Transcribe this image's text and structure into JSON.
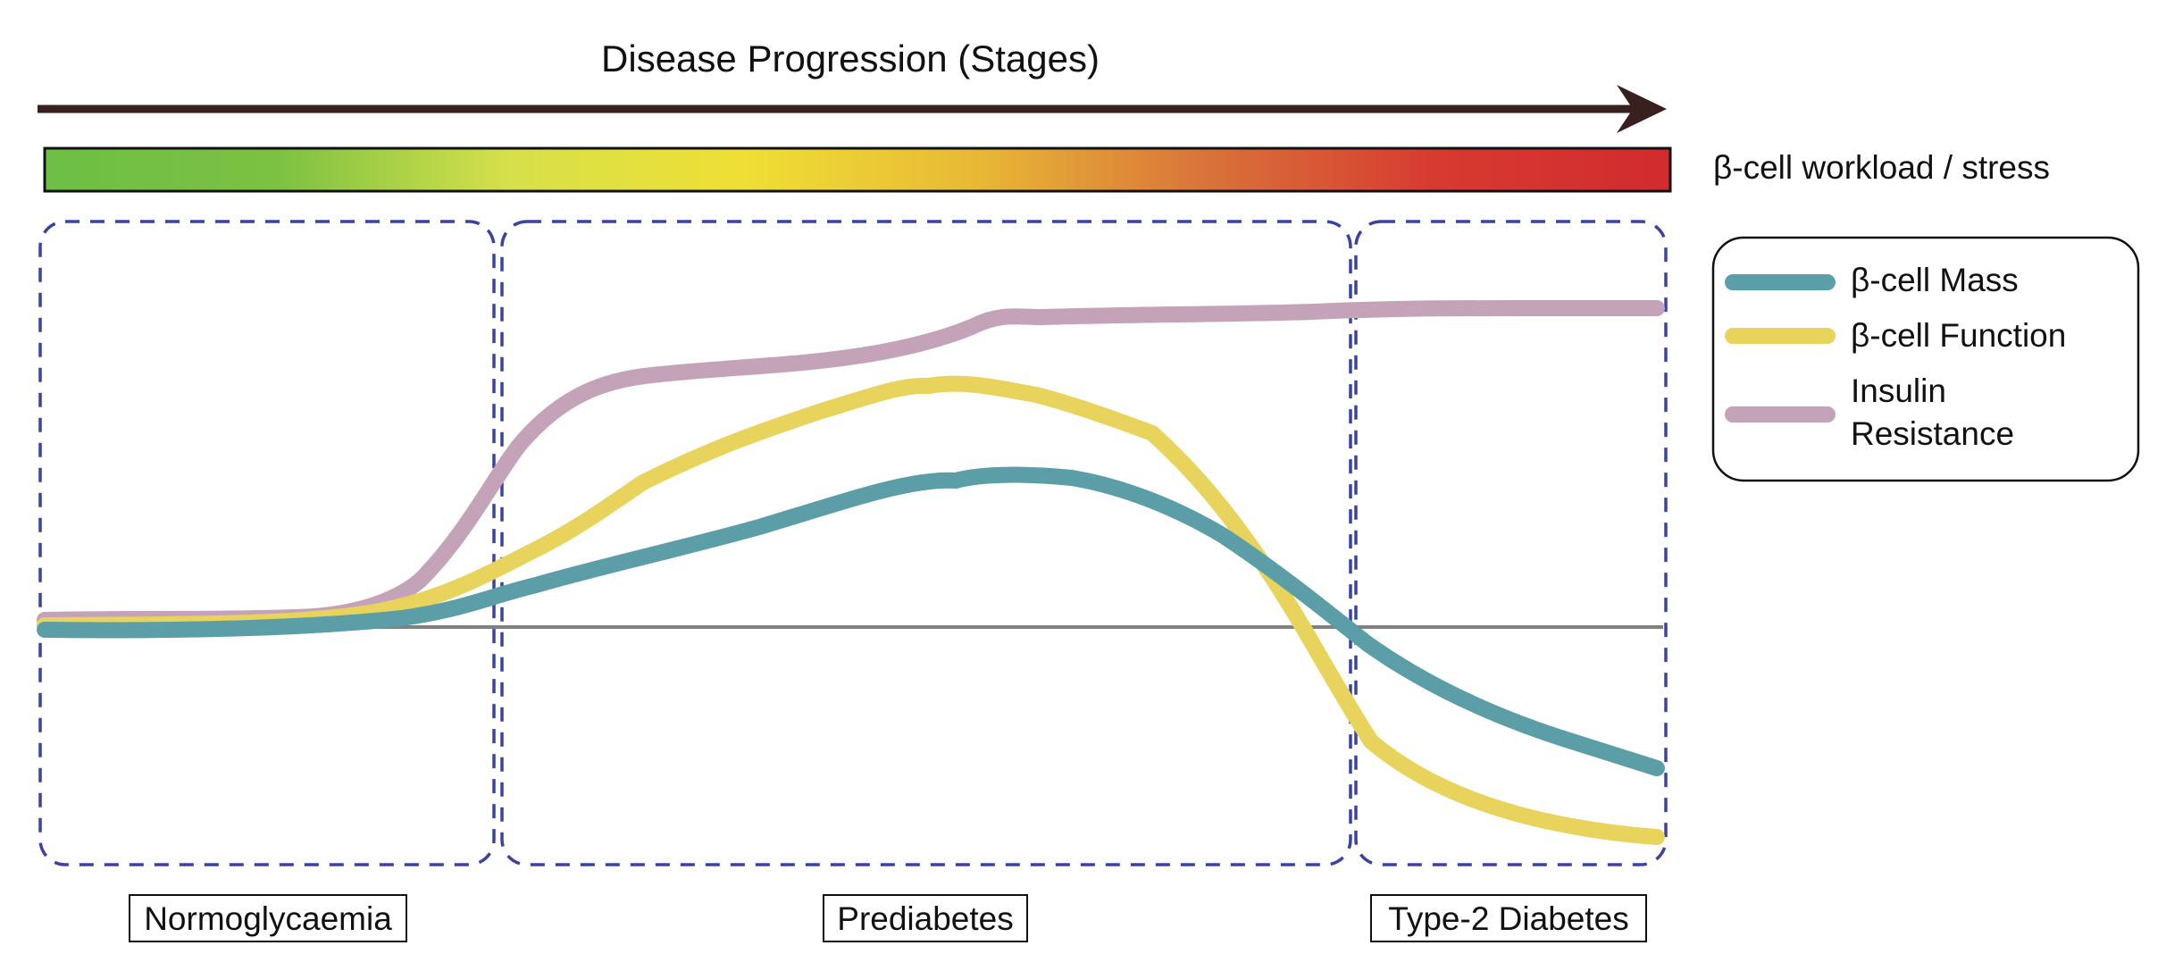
{
  "header": {
    "title": "Disease Progression (Stages)"
  },
  "stress_bar": {
    "label": "β-cell workload / stress",
    "gradient_colors": [
      "#6dbf45",
      "#7cc142",
      "#d6e04a",
      "#efdf35",
      "#e8b935",
      "#d9733a",
      "#d73a30",
      "#d22b2f"
    ]
  },
  "stages": [
    {
      "label": "Normoglycaemia"
    },
    {
      "label": "Prediabetes"
    },
    {
      "label": "Type-2 Diabetes"
    }
  ],
  "legend": {
    "items": [
      {
        "label_lines": [
          "β-cell Mass"
        ],
        "color": "#5b9ea8"
      },
      {
        "label_lines": [
          "β-cell Function"
        ],
        "color": "#e8d35c"
      },
      {
        "label_lines": [
          "Insulin",
          "Resistance"
        ],
        "color": "#c4a3b8"
      }
    ]
  },
  "colors": {
    "arrow": "#3a1f1f",
    "stage_box": "#3b43a0",
    "baseline": "#808080"
  }
}
